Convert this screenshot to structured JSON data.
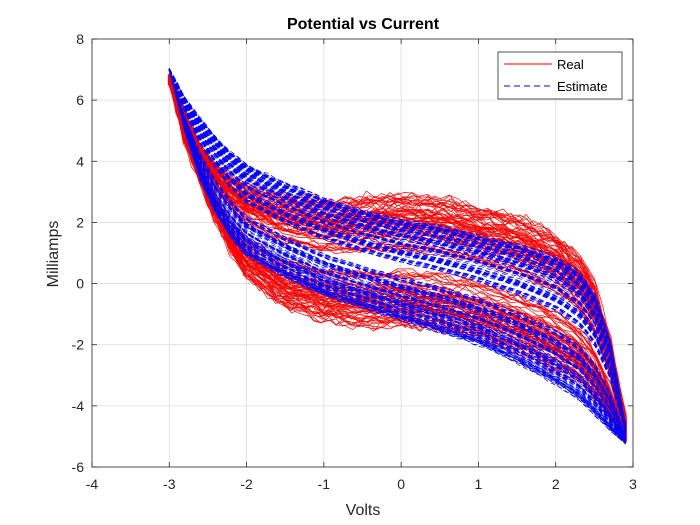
{
  "chart_data": {
    "type": "line",
    "title": "Potential vs Current",
    "xlabel": "Volts",
    "ylabel": "Milliamps",
    "xlim": [
      -4,
      3
    ],
    "ylim": [
      -6,
      8
    ],
    "xticks": [
      -4,
      -3,
      -2,
      -1,
      0,
      1,
      2,
      3
    ],
    "yticks": [
      -6,
      -4,
      -2,
      0,
      2,
      4,
      6,
      8
    ],
    "grid": true,
    "legend": {
      "placement": "top-right"
    },
    "series": [
      {
        "name": "Real",
        "color": "#ff0000",
        "style": "solid",
        "upper_branch": {
          "x": [
            -3.0,
            -2.8,
            -2.6,
            -2.4,
            -2.2,
            -2.0,
            -1.5,
            -1.0,
            -0.5,
            0.0,
            0.5,
            1.0,
            1.5,
            2.0,
            2.3,
            2.5,
            2.7,
            2.9
          ],
          "y": [
            6.7,
            5.6,
            4.5,
            3.9,
            3.5,
            3.2,
            2.9,
            2.7,
            2.8,
            2.9,
            2.8,
            2.5,
            2.2,
            1.6,
            0.9,
            0.0,
            -1.8,
            -4.4
          ]
        },
        "lower_branch": {
          "x": [
            -3.0,
            -2.8,
            -2.6,
            -2.4,
            -2.2,
            -2.0,
            -1.5,
            -1.0,
            -0.5,
            0.0,
            0.5,
            1.0,
            1.5,
            2.0,
            2.3,
            2.5,
            2.7,
            2.9
          ],
          "y": [
            6.7,
            4.6,
            3.3,
            2.1,
            1.0,
            0.2,
            -0.8,
            -1.2,
            -1.4,
            -1.4,
            -1.5,
            -1.8,
            -2.2,
            -2.8,
            -3.2,
            -3.7,
            -4.4,
            -5.1
          ]
        }
      },
      {
        "name": "Estimate",
        "color": "#0000ff",
        "style": "dashed",
        "upper_branch": {
          "x": [
            -3.0,
            -2.8,
            -2.6,
            -2.4,
            -2.2,
            -2.0,
            -1.5,
            -1.0,
            -0.5,
            0.0,
            0.5,
            1.0,
            1.5,
            2.0,
            2.3,
            2.5,
            2.7,
            2.9
          ],
          "y": [
            7.0,
            6.1,
            5.4,
            4.8,
            4.3,
            3.9,
            3.3,
            2.8,
            2.4,
            2.1,
            1.9,
            1.6,
            1.3,
            0.9,
            0.4,
            -0.3,
            -1.8,
            -4.6
          ]
        },
        "lower_branch": {
          "x": [
            -3.0,
            -2.8,
            -2.6,
            -2.4,
            -2.2,
            -2.0,
            -1.5,
            -1.0,
            -0.5,
            0.0,
            0.5,
            1.0,
            1.5,
            2.0,
            2.3,
            2.5,
            2.7,
            2.9
          ],
          "y": [
            7.0,
            5.0,
            3.4,
            2.3,
            1.5,
            0.9,
            0.2,
            -0.4,
            -0.8,
            -1.2,
            -1.6,
            -2.0,
            -2.6,
            -3.3,
            -3.8,
            -4.3,
            -4.8,
            -5.2
          ]
        }
      }
    ]
  }
}
